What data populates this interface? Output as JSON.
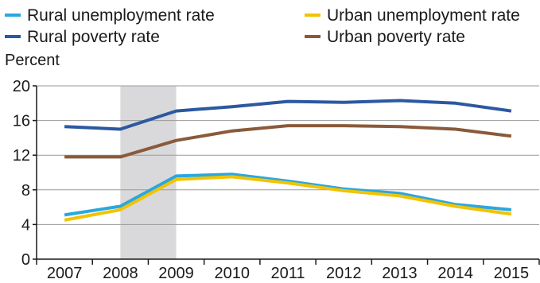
{
  "chart_data": {
    "type": "line",
    "ylabel": "Percent",
    "ylim": [
      0,
      20
    ],
    "yticks": [
      0,
      4,
      8,
      12,
      16,
      20
    ],
    "grid": true,
    "legend_position": "top",
    "recession_shading": [
      "2008",
      "2009"
    ],
    "recession_color": "#d9d9db",
    "categories": [
      "2007",
      "2008",
      "2009",
      "2010",
      "2011",
      "2012",
      "2013",
      "2014",
      "2015"
    ],
    "series": [
      {
        "name": "Rural unemployment rate",
        "color": "#2aa7df",
        "values": [
          5.1,
          6.1,
          9.6,
          9.8,
          9.0,
          8.1,
          7.6,
          6.3,
          5.7
        ]
      },
      {
        "name": "Urban unemployment rate",
        "color": "#f2c300",
        "values": [
          4.5,
          5.7,
          9.2,
          9.5,
          8.8,
          7.9,
          7.3,
          6.1,
          5.2
        ]
      },
      {
        "name": "Rural poverty rate",
        "color": "#2c58a0",
        "values": [
          15.3,
          15.0,
          17.1,
          17.6,
          18.2,
          18.1,
          18.3,
          18.0,
          17.1
        ]
      },
      {
        "name": "Urban poverty rate",
        "color": "#8a5a3a",
        "values": [
          11.8,
          11.8,
          13.7,
          14.8,
          15.4,
          15.4,
          15.3,
          15.0,
          14.2
        ]
      }
    ]
  }
}
